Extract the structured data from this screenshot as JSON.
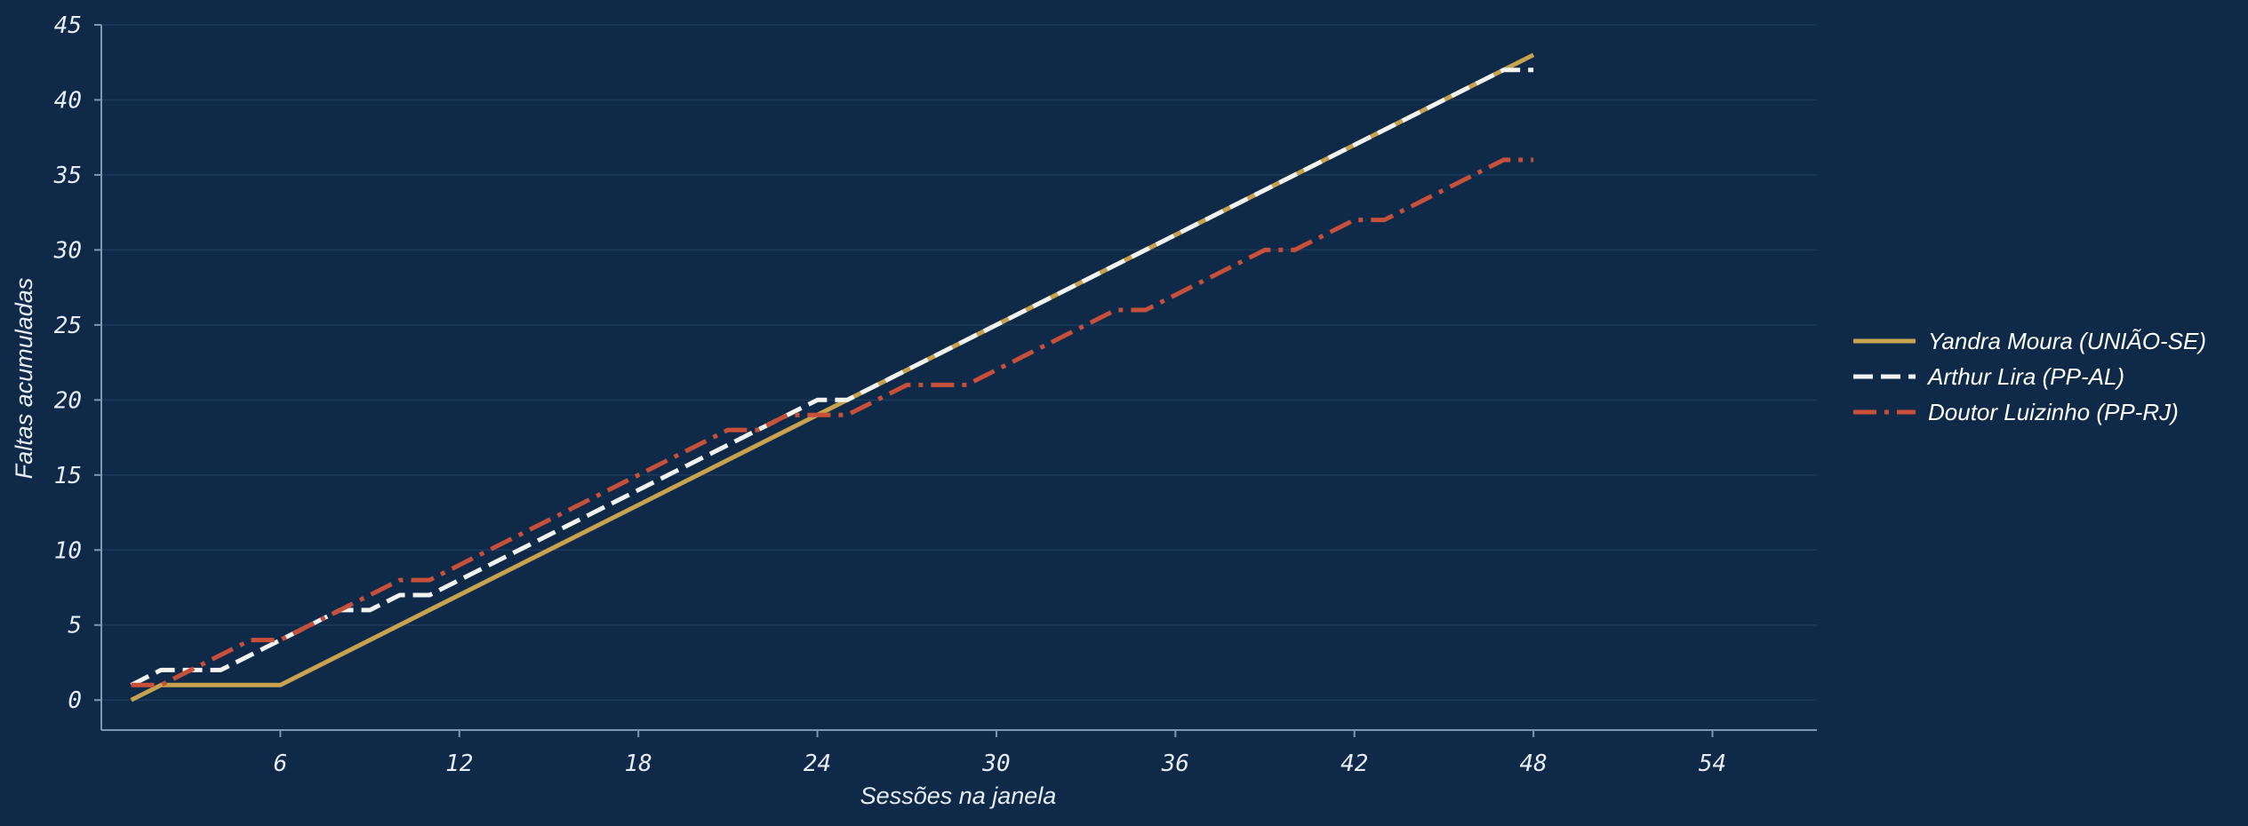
{
  "chart_data": {
    "type": "line",
    "xlabel": "Sessões na janela",
    "ylabel": "Faltas acumuladas",
    "xlim": [
      0,
      57.5
    ],
    "ylim": [
      -2,
      45
    ],
    "xticks": [
      6,
      12,
      18,
      24,
      30,
      36,
      42,
      48,
      54
    ],
    "yticks": [
      0,
      5,
      10,
      15,
      20,
      25,
      30,
      35,
      40,
      45
    ],
    "grid": "horizontal",
    "legend_position": "right",
    "colors": {
      "background": "#0f2a48",
      "grid": "#1b3a5c",
      "axis": "#7f98b0",
      "text": "#e8edf3"
    },
    "series": [
      {
        "name": "Yandra Moura (UNIÃO-SE)",
        "color": "#c8a24e",
        "style": "solid",
        "points": [
          [
            1,
            0
          ],
          [
            2,
            1
          ],
          [
            6,
            1
          ],
          [
            25,
            20
          ],
          [
            48,
            43
          ]
        ]
      },
      {
        "name": "Arthur Lira (PP-AL)",
        "color": "#f2f2ee",
        "style": "dashed",
        "points": [
          [
            1,
            1
          ],
          [
            2,
            2
          ],
          [
            4,
            2
          ],
          [
            8,
            6
          ],
          [
            9,
            6
          ],
          [
            10,
            7
          ],
          [
            11,
            7
          ],
          [
            24,
            20
          ],
          [
            25,
            20
          ],
          [
            47,
            42
          ],
          [
            48,
            42
          ]
        ]
      },
      {
        "name": "Doutor Luizinho (PP-RJ)",
        "color": "#c8503a",
        "style": "dashdot",
        "points": [
          [
            1,
            1
          ],
          [
            2,
            1
          ],
          [
            5,
            4
          ],
          [
            6,
            4
          ],
          [
            10,
            8
          ],
          [
            11,
            8
          ],
          [
            21,
            18
          ],
          [
            22,
            18
          ],
          [
            23,
            19
          ],
          [
            25,
            19
          ],
          [
            27,
            21
          ],
          [
            28,
            21
          ],
          [
            29,
            21
          ],
          [
            34,
            26
          ],
          [
            35,
            26
          ],
          [
            39,
            30
          ],
          [
            40,
            30
          ],
          [
            42,
            32
          ],
          [
            43,
            32
          ],
          [
            47,
            36
          ],
          [
            48,
            36
          ]
        ]
      }
    ]
  }
}
